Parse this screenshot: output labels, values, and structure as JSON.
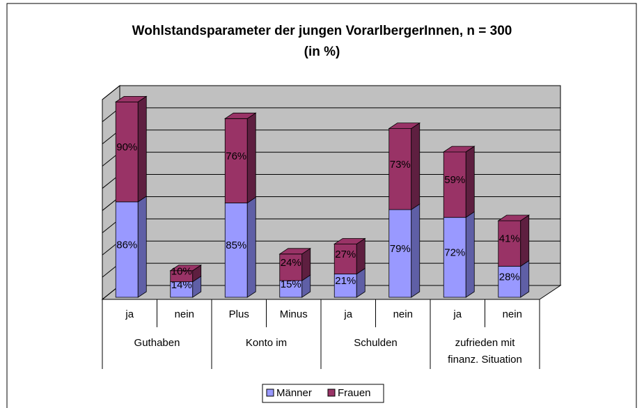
{
  "chart_data": {
    "type": "bar",
    "stacked": true,
    "three_d": true,
    "title": "Wohlstandsparameter der jungen VorarlbergerInnen, n = 300\n(in %)",
    "categories": [
      "ja",
      "nein",
      "Plus",
      "Minus",
      "ja",
      "nein",
      "ja",
      "nein"
    ],
    "category_groups": [
      "Guthaben",
      "Konto im",
      "Schulden",
      "zufrieden mit\nfinanz. Situation"
    ],
    "series": [
      {
        "name": "Männer",
        "color": "#9999ff",
        "side_color": "#5f5fa6",
        "values": [
          86,
          14,
          85,
          15,
          21,
          79,
          72,
          28
        ],
        "value_labels": [
          "86%",
          "14%",
          "85%",
          "15%",
          "21%",
          "79%",
          "72%",
          "28%"
        ]
      },
      {
        "name": "Frauen",
        "color": "#993366",
        "side_color": "#5e1f40",
        "values": [
          90,
          10,
          76,
          24,
          27,
          73,
          59,
          41
        ],
        "value_labels": [
          "90%",
          "10%",
          "76%",
          "24%",
          "27%",
          "73%",
          "59%",
          "41%"
        ]
      }
    ],
    "ylim": [
      0,
      180
    ],
    "yticks": [
      0,
      20,
      40,
      60,
      80,
      100,
      120,
      140,
      160,
      180
    ],
    "grid": true,
    "legend": "bottom"
  }
}
